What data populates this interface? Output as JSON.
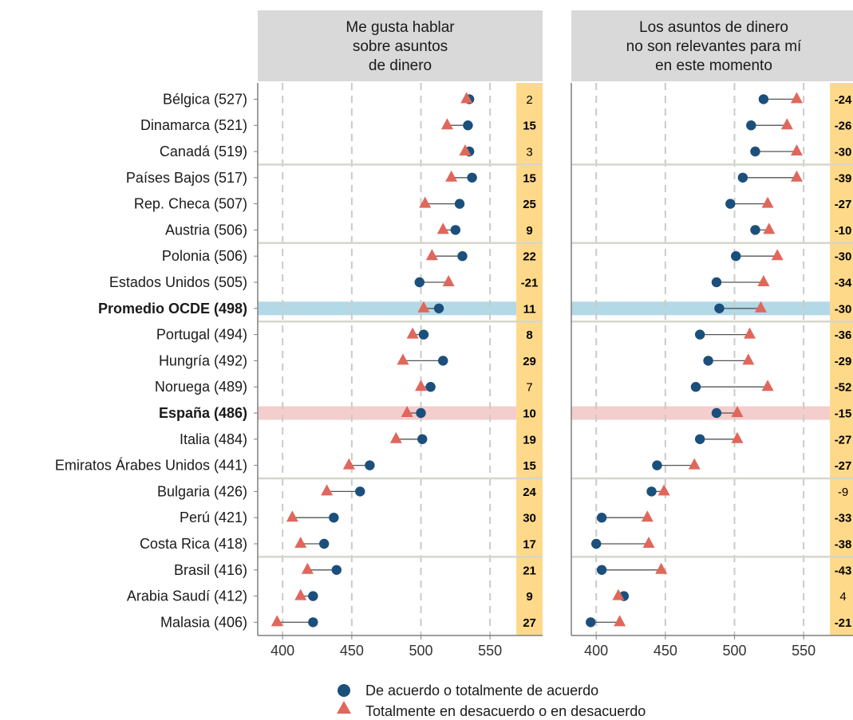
{
  "chart_data": {
    "type": "dot-plot",
    "panels": [
      {
        "title_lines": [
          "Me gusta hablar",
          "sobre asuntos",
          "de dinero"
        ],
        "agree": [
          535,
          534,
          535,
          537,
          528,
          525,
          530,
          499,
          513,
          502,
          516,
          507,
          500,
          501,
          463,
          456,
          437,
          430,
          439,
          422,
          422
        ],
        "disagree": [
          533,
          519,
          532,
          522,
          503,
          516,
          508,
          520,
          502,
          494,
          487,
          500,
          490,
          482,
          448,
          432,
          407,
          413,
          418,
          413,
          396
        ],
        "differences": [
          "2",
          "15",
          "3",
          "15",
          "25",
          "9",
          "22",
          "-21",
          "11",
          "8",
          "29",
          "7",
          "10",
          "19",
          "15",
          "24",
          "30",
          "17",
          "21",
          "9",
          "27"
        ],
        "bold_diff": [
          false,
          true,
          false,
          true,
          true,
          true,
          true,
          true,
          true,
          true,
          true,
          false,
          true,
          true,
          true,
          true,
          true,
          true,
          true,
          true,
          true
        ]
      },
      {
        "title_lines": [
          "Los asuntos de dinero",
          "no son relevantes para mí",
          "en este momento"
        ],
        "agree": [
          521,
          512,
          515,
          506,
          497,
          515,
          501,
          487,
          489,
          475,
          481,
          472,
          487,
          475,
          444,
          440,
          404,
          400,
          404,
          420,
          396
        ],
        "disagree": [
          545,
          538,
          545,
          545,
          524,
          525,
          531,
          521,
          519,
          511,
          510,
          524,
          502,
          502,
          471,
          449,
          437,
          438,
          447,
          416,
          417
        ],
        "differences": [
          "-24",
          "-26",
          "-30",
          "-39",
          "-27",
          "-10",
          "-30",
          "-34",
          "-30",
          "-36",
          "-29",
          "-52",
          "-15",
          "-27",
          "-27",
          "-9",
          "-33",
          "-38",
          "-43",
          "4",
          "-21"
        ],
        "bold_diff": [
          true,
          true,
          true,
          true,
          true,
          true,
          true,
          true,
          true,
          true,
          true,
          true,
          true,
          true,
          true,
          false,
          true,
          true,
          true,
          false,
          true
        ]
      }
    ],
    "countries": [
      "Bélgica (527)",
      "Dinamarca (521)",
      "Canadá (519)",
      "Países Bajos (517)",
      "Rep. Checa (507)",
      "Austria (506)",
      "Polonia (506)",
      "Estados Unidos (505)",
      "Promedio OCDE (498)",
      "Portugal (494)",
      "Hungría (492)",
      "Noruega (489)",
      "España (486)",
      "Italia (484)",
      "Emiratos Árabes Unidos (441)",
      "Bulgaria (426)",
      "Perú (421)",
      "Costa Rica (418)",
      "Brasil (416)",
      "Arabia Saudí (412)",
      "Malasia (406)"
    ],
    "bold_countries": [
      "Promedio OCDE (498)",
      "España (486)"
    ],
    "highlight_rows": [
      {
        "country": "Promedio OCDE (498)",
        "color": "#b3d9e6"
      },
      {
        "country": "España (486)",
        "color": "#f4cdcd"
      }
    ],
    "x_ticks": [
      400,
      450,
      500,
      550
    ],
    "xlim": [
      382,
      588
    ],
    "diff_column_start": 569,
    "group_separators_after": [
      2,
      5,
      8,
      14,
      17
    ],
    "colors": {
      "agree": "#1b4f7c",
      "disagree": "#e0675b",
      "diff_bg": "#ffd98a",
      "header_bg": "#d9d9d9",
      "grid": "#cbcbc3",
      "separator": "#d6d6cc",
      "axis": "#7f7f7f"
    },
    "legend": {
      "agree_label": "De acuerdo o totalmente de acuerdo",
      "disagree_label": "Totalmente en desacuerdo o en desacuerdo"
    }
  }
}
